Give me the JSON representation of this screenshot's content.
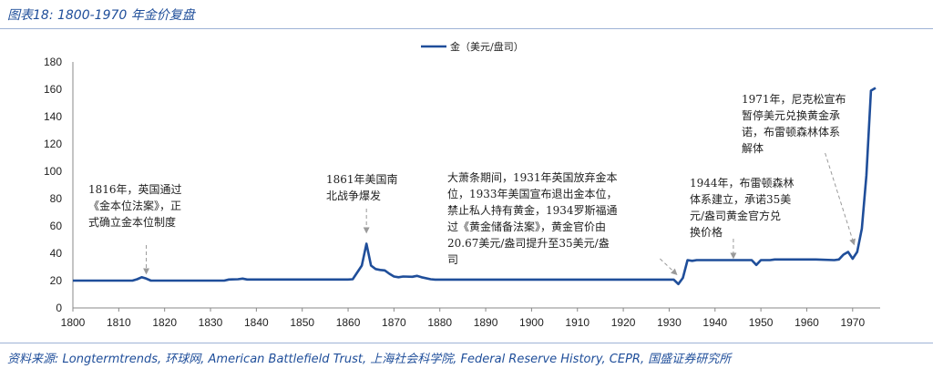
{
  "figure_title": "图表18: 1800-1970 年金价复盘",
  "source": "资料来源: Longtermtrends, 环球网, American Battlefield Trust, 上海社会科学院, Federal Reserve History, CEPR, 国盛证券研究所",
  "colors": {
    "series": "#1f4e9a",
    "accent_text": "#1f4e9a",
    "arrow": "#999999"
  },
  "chart_data": {
    "type": "line",
    "title": "",
    "xlabel": "",
    "ylabel": "",
    "xlim": [
      1800,
      1976
    ],
    "ylim": [
      0,
      180
    ],
    "x_ticks": [
      1800,
      1810,
      1820,
      1830,
      1840,
      1850,
      1860,
      1870,
      1880,
      1890,
      1900,
      1910,
      1920,
      1930,
      1940,
      1950,
      1960,
      1970
    ],
    "y_ticks": [
      0,
      20,
      40,
      60,
      80,
      100,
      120,
      140,
      160,
      180
    ],
    "legend_position": "top-center",
    "grid": false,
    "series": [
      {
        "name": "金（美元/盘司）",
        "color": "#1f4e9a",
        "points": [
          [
            1800,
            20
          ],
          [
            1813,
            20
          ],
          [
            1814,
            21
          ],
          [
            1815,
            22.5
          ],
          [
            1816,
            21.5
          ],
          [
            1817,
            20
          ],
          [
            1830,
            20
          ],
          [
            1833,
            20
          ],
          [
            1834,
            20.8
          ],
          [
            1836,
            21
          ],
          [
            1837,
            21.5
          ],
          [
            1838,
            20.8
          ],
          [
            1860,
            20.8
          ],
          [
            1861,
            21
          ],
          [
            1862,
            26
          ],
          [
            1863,
            31
          ],
          [
            1864,
            47
          ],
          [
            1865,
            31
          ],
          [
            1866,
            28.5
          ],
          [
            1867,
            27.8
          ],
          [
            1868,
            27.5
          ],
          [
            1869,
            25
          ],
          [
            1870,
            23
          ],
          [
            1871,
            22.5
          ],
          [
            1872,
            23
          ],
          [
            1874,
            22.8
          ],
          [
            1875,
            23.5
          ],
          [
            1876,
            22.5
          ],
          [
            1878,
            21
          ],
          [
            1879,
            20.7
          ],
          [
            1930,
            20.7
          ],
          [
            1931,
            20.7
          ],
          [
            1932,
            17.5
          ],
          [
            1933,
            22
          ],
          [
            1934,
            35
          ],
          [
            1935,
            34.5
          ],
          [
            1936,
            35
          ],
          [
            1948,
            35
          ],
          [
            1949,
            31.5
          ],
          [
            1950,
            35
          ],
          [
            1952,
            35
          ],
          [
            1953,
            35.5
          ],
          [
            1962,
            35.5
          ],
          [
            1966,
            35
          ],
          [
            1967,
            35.5
          ],
          [
            1968,
            39
          ],
          [
            1969,
            41
          ],
          [
            1970,
            36
          ],
          [
            1971,
            41
          ],
          [
            1972,
            58
          ],
          [
            1973,
            97
          ],
          [
            1974,
            159
          ],
          [
            1975,
            161
          ]
        ]
      }
    ],
    "annotations": [
      {
        "lines": [
          "1816年，英国通过",
          "《金本位法案》，正",
          "式确立金本位制度"
        ],
        "year": 1816,
        "value": 22
      },
      {
        "lines": [
          "1861年美国南",
          "北战争爆发"
        ],
        "year": 1864,
        "value": 47
      },
      {
        "lines": [
          "大萧条期间，1931年英国放弃金本",
          "位，1933年美国宣布退出金本位，",
          "禁止私人持有黄金，1934罗斯福通",
          "过《黄金储备法案》，黄金官价由",
          "20.67美元/盎司提升至35美元/盎",
          "司"
        ],
        "year": 1932,
        "value": 20
      },
      {
        "lines": [
          "1944年，布雷顿森林",
          "体系建立，承诺35美",
          "元/盎司黄金官方兑",
          "换价格"
        ],
        "year": 1944,
        "value": 35
      },
      {
        "lines": [
          "1971年，尼克松宣布",
          "暂停美元兑换黄金承",
          "诺，布雷顿森林体系",
          "解体"
        ],
        "year": 1971,
        "value": 40
      }
    ]
  }
}
